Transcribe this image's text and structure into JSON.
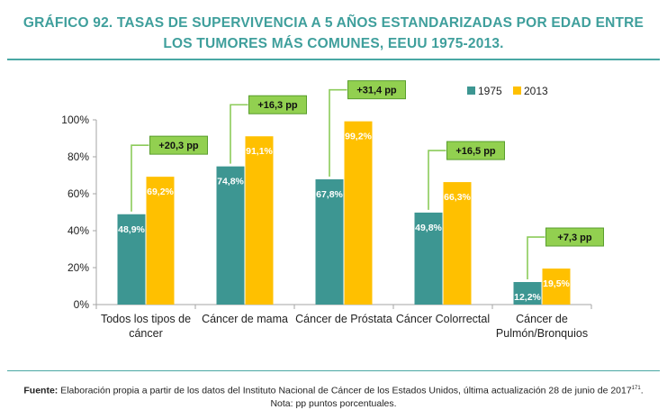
{
  "title_line1": "GRÁFICO 92. TASAS DE SUPERVIVENCIA A 5 AÑOS ESTANDARIZADAS POR EDAD ENTRE",
  "title_line2": "LOS TUMORES MÁS COMUNES, EEUU 1975-2013.",
  "footer": {
    "source_label": "Fuente:",
    "source_text": " Elaboración propia a partir de los datos del Instituto Nacional de Cáncer de los Estados Unidos, última actualización 28 de junio de 2017",
    "source_ref": "171",
    "source_end": ".",
    "note": "Nota: pp puntos porcentuales."
  },
  "colors": {
    "title": "#3f9f9c",
    "bar_1975": "#3d9692",
    "bar_2013": "#ffc000",
    "diff_box": "#92d050",
    "diff_border": "#5a9e2e",
    "arrow": "#8ccb5a"
  },
  "chart_data": {
    "type": "bar",
    "categories": [
      [
        "Todos los tipos de",
        "cáncer"
      ],
      [
        "Cáncer de mama"
      ],
      [
        "Cáncer de Próstata"
      ],
      [
        "Cáncer Colorrectal"
      ],
      [
        "Cáncer de",
        "Pulmón/Bronquios"
      ]
    ],
    "series": [
      {
        "name": "1975",
        "values": [
          48.9,
          74.8,
          67.8,
          49.8,
          12.2
        ],
        "labels": [
          "48,9%",
          "74,8%",
          "67,8%",
          "49,8%",
          "12,2%"
        ]
      },
      {
        "name": "2013",
        "values": [
          69.2,
          91.1,
          99.2,
          66.3,
          19.5
        ],
        "labels": [
          "69,2%",
          "91,1%",
          "99,2%",
          "66,3%",
          "19,5%"
        ]
      }
    ],
    "differences": [
      "+20,3 pp",
      "+16,3 pp",
      "+31,4 pp",
      "+16,5 pp",
      "+7,3 pp"
    ],
    "ylim": [
      0,
      100
    ],
    "yticks": [
      0,
      20,
      40,
      60,
      80,
      100
    ],
    "ytick_labels": [
      "0%",
      "20%",
      "40%",
      "60%",
      "80%",
      "100%"
    ],
    "legend_position": "top-right",
    "grid": false
  }
}
